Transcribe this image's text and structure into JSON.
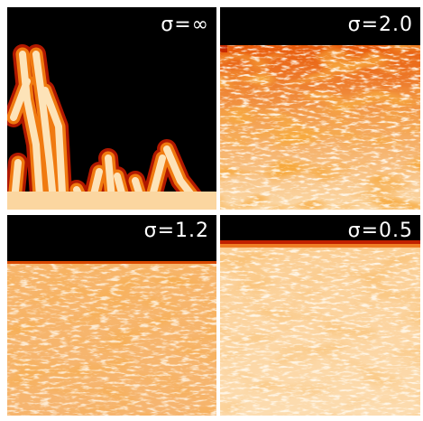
{
  "panels": [
    {
      "label": "σ=∞"
    },
    {
      "label": "σ=2.0"
    },
    {
      "label": "σ=1.2"
    },
    {
      "label": "σ=0.5"
    }
  ]
}
